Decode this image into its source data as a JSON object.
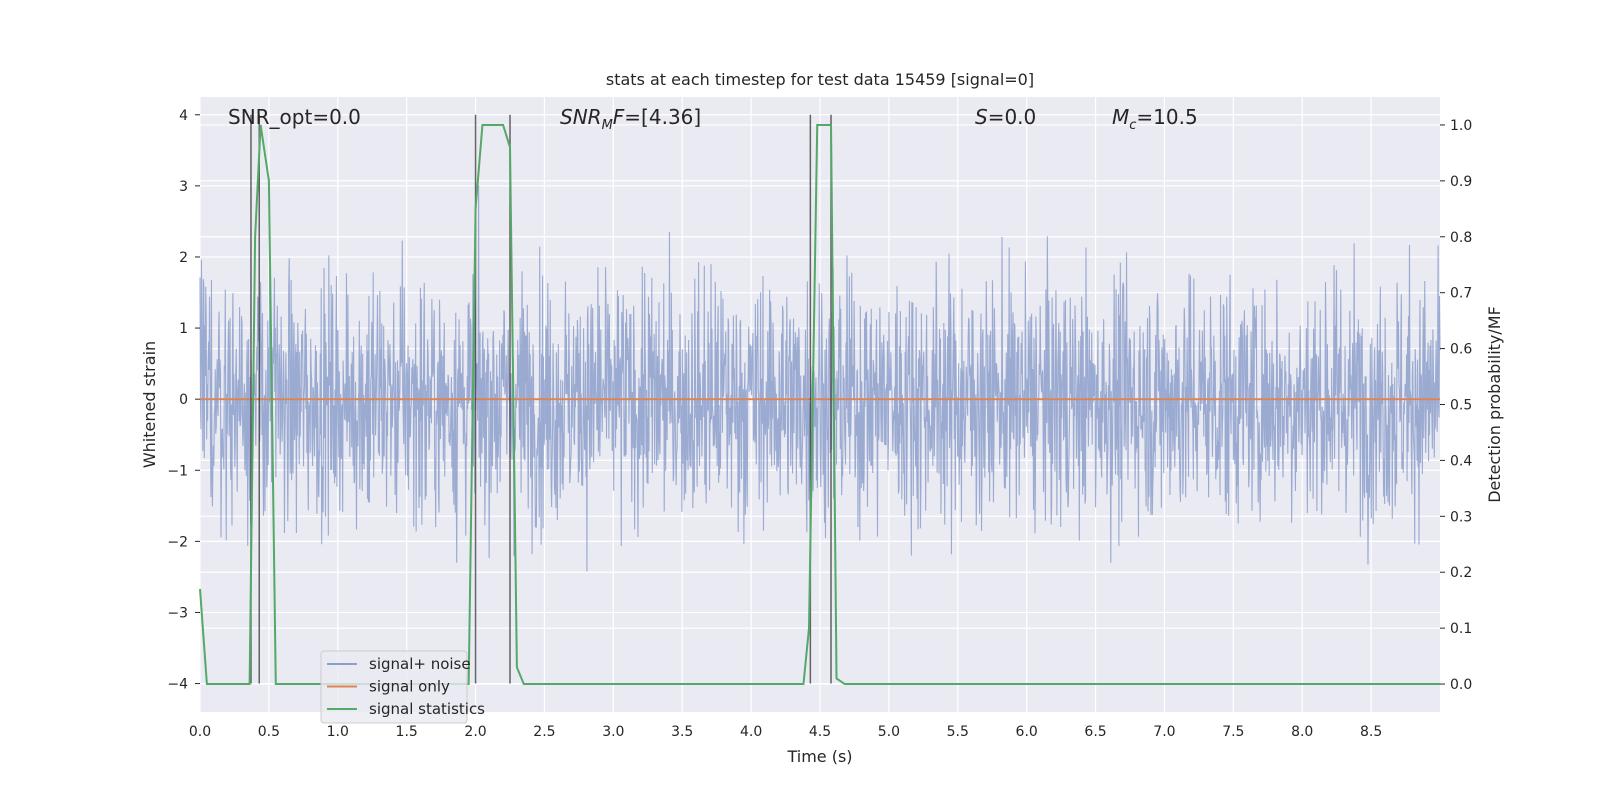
{
  "chart_data": {
    "type": "line",
    "title": "stats at each timestep for test data 15459 [signal=0]",
    "xlabel": "Time (s)",
    "ylabel_left": "Whitened strain",
    "ylabel_right": "Detection probability/MF",
    "xlim": [
      0.0,
      9.0
    ],
    "ylim_left": [
      -4.4,
      4.25
    ],
    "ylim_right": [
      -0.05,
      1.05
    ],
    "xticks": [
      "0.0",
      "0.5",
      "1.0",
      "1.5",
      "2.0",
      "2.5",
      "3.0",
      "3.5",
      "4.0",
      "4.5",
      "5.0",
      "5.5",
      "6.0",
      "6.5",
      "7.0",
      "7.5",
      "8.0",
      "8.5"
    ],
    "yticks_left": [
      "−4",
      "−3",
      "−2",
      "−1",
      "0",
      "1",
      "2",
      "3",
      "4"
    ],
    "yticks_right": [
      "0.0",
      "0.1",
      "0.2",
      "0.3",
      "0.4",
      "0.5",
      "0.6",
      "0.7",
      "0.8",
      "0.9",
      "1.0"
    ],
    "grid": true,
    "legend_placement": "lower-left",
    "annotations": {
      "snr_opt": "SNR_opt=0.0",
      "snr_mf_var": "SNR",
      "snr_mf_sub": "M",
      "snr_mf_var2": "F",
      "snr_mf_val": "=[4.36]",
      "s_var": "S",
      "s_val": "=0.0",
      "mc_var": "M",
      "mc_sub": "c",
      "mc_val": "=10.5"
    },
    "series": [
      {
        "name": "signal+ noise",
        "color": "#8c9fcb",
        "axis": "left",
        "description_only": "whitened noisy strain, dense, roughly within [-3.5, 3.6]"
      },
      {
        "name": "signal only",
        "color": "#dd8452",
        "axis": "left",
        "values_constant": 0.0
      },
      {
        "name": "signal statistics",
        "color": "#55a868",
        "axis": "right",
        "x": [
          0.0,
          0.05,
          0.1,
          0.2,
          0.3,
          0.36,
          0.4,
          0.44,
          0.5,
          0.55,
          0.6,
          0.7,
          0.8,
          0.9,
          1.0,
          1.5,
          1.9,
          1.95,
          2.0,
          2.05,
          2.1,
          2.2,
          2.25,
          2.3,
          2.35,
          2.4,
          3.0,
          3.5,
          4.0,
          4.38,
          4.42,
          4.48,
          4.52,
          4.58,
          4.62,
          4.68,
          5.0,
          6.0,
          7.0,
          8.0,
          9.0
        ],
        "values": [
          0.17,
          0.0,
          0.0,
          0.0,
          0.0,
          0.0,
          0.8,
          1.0,
          0.9,
          0.0,
          0.0,
          0.0,
          0.0,
          0.0,
          0.0,
          0.0,
          0.0,
          0.0,
          0.85,
          1.0,
          1.0,
          1.0,
          0.96,
          0.03,
          0.0,
          0.0,
          0.0,
          0.0,
          0.0,
          0.0,
          0.1,
          1.0,
          1.0,
          1.0,
          0.01,
          0.0,
          0.0,
          0.0,
          0.0,
          0.0,
          0.0
        ]
      }
    ],
    "vlines": [
      0.37,
      0.43,
      2.0,
      2.25,
      4.43,
      4.58
    ]
  }
}
